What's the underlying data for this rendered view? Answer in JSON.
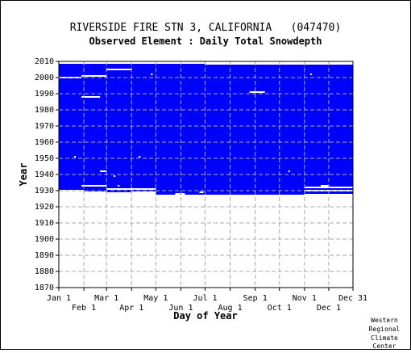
{
  "chart_data": {
    "type": "heatmap",
    "title": "RIVERSIDE FIRE STN 3, CALIFORNIA   (047470)",
    "subtitle": "Observed Element : Daily Total Snowdepth",
    "xlabel": "Day of Year",
    "ylabel": "Year",
    "xlim": [
      1,
      365
    ],
    "ylim": [
      1870,
      2010
    ],
    "x_ticks_top": [
      {
        "label": "Jan 1",
        "day": 1
      },
      {
        "label": "Mar 1",
        "day": 60
      },
      {
        "label": "May 1",
        "day": 121
      },
      {
        "label": "Jul 1",
        "day": 182
      },
      {
        "label": "Sep 1",
        "day": 244
      },
      {
        "label": "Nov 1",
        "day": 305
      },
      {
        "label": "Dec 31",
        "day": 365
      }
    ],
    "x_ticks_bottom": [
      {
        "label": "Feb 1",
        "day": 32
      },
      {
        "label": "Apr 1",
        "day": 91
      },
      {
        "label": "Jun 1",
        "day": 152
      },
      {
        "label": "Aug 1",
        "day": 213
      },
      {
        "label": "Oct 1",
        "day": 274
      },
      {
        "label": "Dec 1",
        "day": 335
      }
    ],
    "y_ticks": [
      1870,
      1880,
      1890,
      1900,
      1910,
      1920,
      1930,
      1940,
      1950,
      1960,
      1970,
      1980,
      1990,
      2000,
      2010
    ],
    "grid": true,
    "data_color": "#0000ff",
    "data_blocks": [
      {
        "day_start": 1,
        "day_end": 32,
        "year_start": 1930.5,
        "year_end": 2008.5
      },
      {
        "day_start": 32,
        "day_end": 60,
        "year_start": 1929.5,
        "year_end": 2008.5
      },
      {
        "day_start": 60,
        "day_end": 91,
        "year_start": 1929,
        "year_end": 2008.5
      },
      {
        "day_start": 91,
        "day_end": 121,
        "year_start": 1929.5,
        "year_end": 2008.5
      },
      {
        "day_start": 121,
        "day_end": 182,
        "year_start": 1927.5,
        "year_end": 2008.5
      },
      {
        "day_start": 182,
        "day_end": 305,
        "year_start": 1927.5,
        "year_end": 2008
      },
      {
        "day_start": 305,
        "day_end": 365,
        "year_start": 1928,
        "year_end": 2008
      }
    ],
    "missing_segments": [
      {
        "day_start": 1,
        "day_end": 29,
        "year": 2000
      },
      {
        "day_start": 29,
        "day_end": 60,
        "year": 2001
      },
      {
        "day_start": 29,
        "day_end": 52,
        "year": 1988
      },
      {
        "day_start": 60,
        "day_end": 91,
        "year": 2005
      },
      {
        "day_start": 237,
        "day_end": 256,
        "year": 1991
      },
      {
        "day_start": 52,
        "day_end": 60,
        "year": 1942
      },
      {
        "day_start": 29,
        "day_end": 60,
        "year": 1933
      },
      {
        "day_start": 60,
        "day_end": 121,
        "year": 1931
      },
      {
        "day_start": 145,
        "day_end": 151,
        "year": 1928
      },
      {
        "day_start": 152,
        "day_end": 157,
        "year": 1928
      },
      {
        "day_start": 175,
        "day_end": 180,
        "year": 1929
      },
      {
        "day_start": 305,
        "day_end": 365,
        "year": 1932
      },
      {
        "day_start": 305,
        "day_end": 365,
        "year": 1930
      },
      {
        "day_start": 325,
        "day_end": 335,
        "year": 1933
      },
      {
        "day_start": 74,
        "day_end": 76,
        "year": 1933
      },
      {
        "day_start": 285,
        "day_end": 287,
        "year": 1942
      },
      {
        "day_start": 115,
        "day_end": 117,
        "year": 2002
      },
      {
        "day_start": 69,
        "day_end": 71,
        "year": 1939
      },
      {
        "day_start": 20,
        "day_end": 22,
        "year": 1951
      },
      {
        "day_start": 100,
        "day_end": 102,
        "year": 1951
      },
      {
        "day_start": 312,
        "day_end": 314,
        "year": 2002
      }
    ]
  },
  "credit": [
    "Western",
    "Regional",
    "Climate",
    "Center"
  ]
}
